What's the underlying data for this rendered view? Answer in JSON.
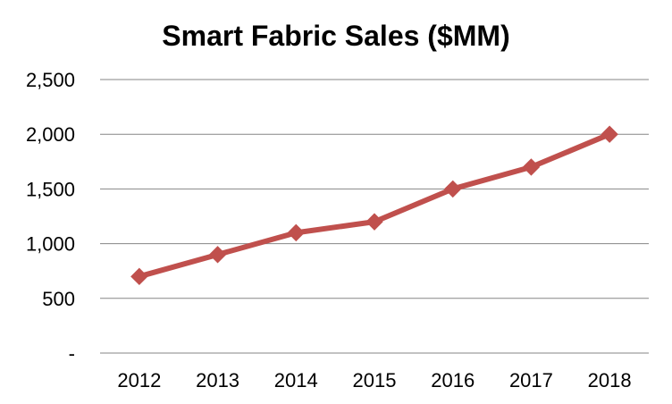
{
  "chart_data": {
    "type": "line",
    "title": "Smart Fabric Sales ($MM)",
    "xlabel": "",
    "ylabel": "",
    "categories": [
      "2012",
      "2013",
      "2014",
      "2015",
      "2016",
      "2017",
      "2018"
    ],
    "series": [
      {
        "values": [
          700,
          900,
          1100,
          1200,
          1500,
          1700,
          2000
        ],
        "color": "#C0504D",
        "marker": "diamond"
      }
    ],
    "ylim": [
      0,
      2500
    ],
    "y_ticks": [
      0,
      500,
      1000,
      1500,
      2000,
      2500
    ],
    "y_tick_labels": [
      "-",
      "500",
      "1,000",
      "1,500",
      "2,000",
      "2,500"
    ],
    "grid": "horizontal",
    "legend": "none",
    "gridline_color": "#868686"
  }
}
